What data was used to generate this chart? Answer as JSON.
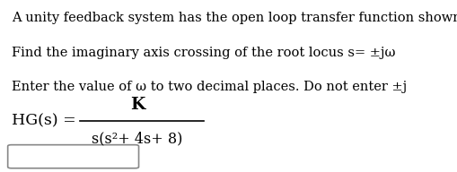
{
  "line1": "A unity feedback system has the open loop transfer function shown below.",
  "line2": "Find the imaginary axis crossing of the root locus s= ±jω",
  "line3": "Enter the value of ω to two decimal places. Do not enter ±j",
  "hg_label": "HG(s) =",
  "numerator": "K",
  "denominator": "s(s²+ 4s+ 8)",
  "bg_color": "#ffffff",
  "text_color": "#000000",
  "font_size_body": 10.5,
  "font_size_math": 12.5,
  "font_size_denom": 11.5
}
